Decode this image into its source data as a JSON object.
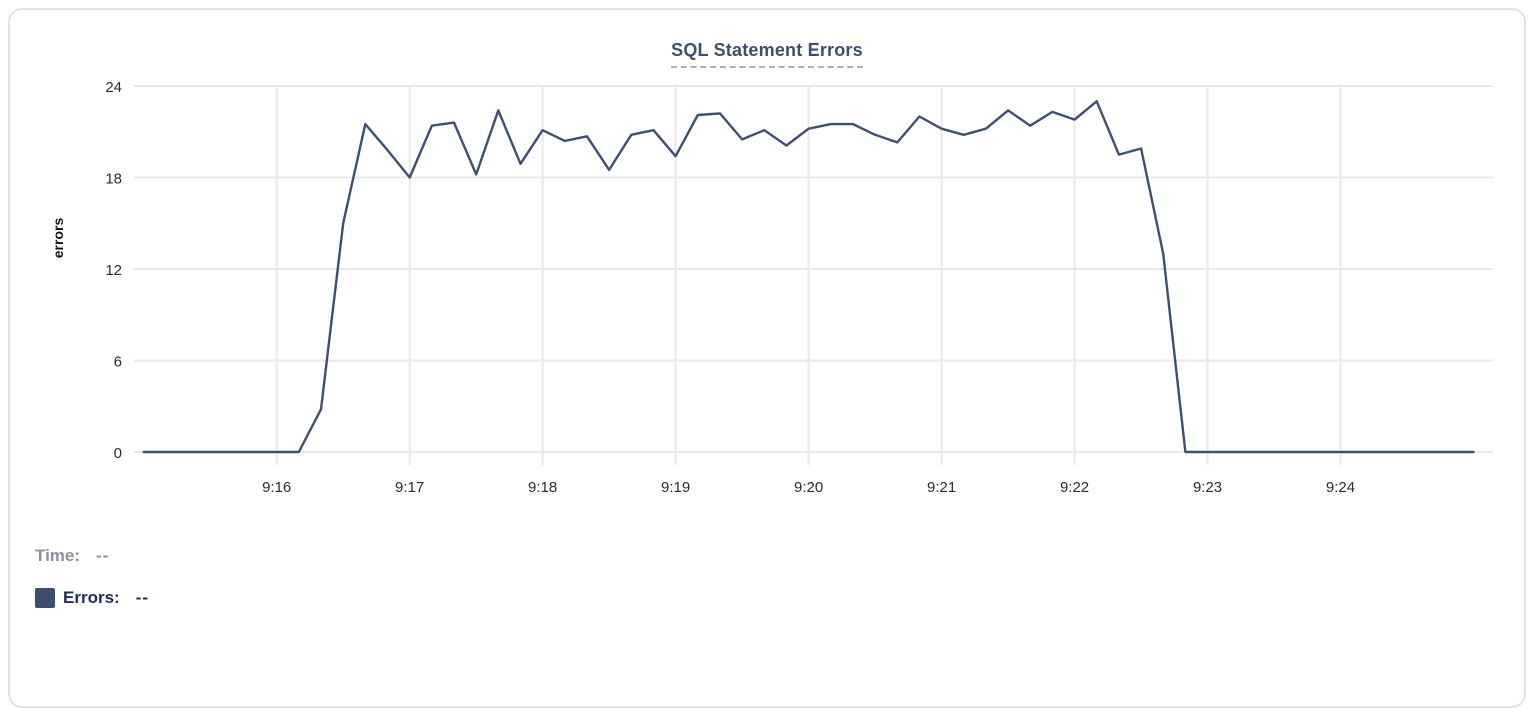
{
  "header": {
    "title": "SQL Statement Errors"
  },
  "axes": {
    "ylabel": "errors"
  },
  "tooltip": {
    "time_label": "Time:",
    "time_value": "--",
    "errors_label": "Errors:",
    "errors_value": "--"
  },
  "colors": {
    "line": "#3f4f6e",
    "title": "#3d4f6f",
    "title_underline": "#a7b1c2",
    "legend_swatch": "#3e4d68",
    "errors_text": "#1f2c55",
    "time_text": "#8b909a",
    "grid": "#e9e9e9",
    "tick_text": "#2b2b2b"
  },
  "chart_data": {
    "type": "line",
    "title": "SQL Statement Errors",
    "xlabel": "",
    "ylabel": "errors",
    "ylim": [
      0,
      24
    ],
    "y_ticks": [
      0,
      6,
      12,
      18,
      24
    ],
    "x_ticks": [
      "9:16",
      "9:17",
      "9:18",
      "9:19",
      "9:20",
      "9:21",
      "9:22",
      "9:23",
      "9:24"
    ],
    "x_range": [
      "9:15:00",
      "9:25:00"
    ],
    "sample_interval_seconds": 10,
    "grid": true,
    "legend_position": "bottom-left",
    "series": [
      {
        "name": "Errors",
        "points": [
          [
            "9:15:00",
            0
          ],
          [
            "9:15:10",
            0
          ],
          [
            "9:15:20",
            0
          ],
          [
            "9:15:30",
            0
          ],
          [
            "9:15:40",
            0
          ],
          [
            "9:15:50",
            0
          ],
          [
            "9:16:00",
            0
          ],
          [
            "9:16:10",
            0
          ],
          [
            "9:16:20",
            2.8
          ],
          [
            "9:16:30",
            15
          ],
          [
            "9:16:40",
            21.5
          ],
          [
            "9:16:50",
            19.8
          ],
          [
            "9:17:00",
            18
          ],
          [
            "9:17:10",
            21.4
          ],
          [
            "9:17:20",
            21.6
          ],
          [
            "9:17:30",
            18.2
          ],
          [
            "9:17:40",
            22.4
          ],
          [
            "9:17:50",
            18.9
          ],
          [
            "9:18:00",
            21.1
          ],
          [
            "9:18:10",
            20.4
          ],
          [
            "9:18:20",
            20.7
          ],
          [
            "9:18:30",
            18.5
          ],
          [
            "9:18:40",
            20.8
          ],
          [
            "9:18:50",
            21.1
          ],
          [
            "9:19:00",
            19.4
          ],
          [
            "9:19:10",
            22.1
          ],
          [
            "9:19:20",
            22.2
          ],
          [
            "9:19:30",
            20.5
          ],
          [
            "9:19:40",
            21.1
          ],
          [
            "9:19:50",
            20.1
          ],
          [
            "9:20:00",
            21.2
          ],
          [
            "9:20:10",
            21.5
          ],
          [
            "9:20:20",
            21.5
          ],
          [
            "9:20:30",
            20.8
          ],
          [
            "9:20:40",
            20.3
          ],
          [
            "9:20:50",
            22
          ],
          [
            "9:21:00",
            21.2
          ],
          [
            "9:21:10",
            20.8
          ],
          [
            "9:21:20",
            21.2
          ],
          [
            "9:21:30",
            22.4
          ],
          [
            "9:21:40",
            21.4
          ],
          [
            "9:21:50",
            22.3
          ],
          [
            "9:22:00",
            21.8
          ],
          [
            "9:22:10",
            23
          ],
          [
            "9:22:20",
            19.5
          ],
          [
            "9:22:30",
            19.9
          ],
          [
            "9:22:40",
            13
          ],
          [
            "9:22:50",
            0
          ],
          [
            "9:23:00",
            0
          ],
          [
            "9:23:10",
            0
          ],
          [
            "9:23:20",
            0
          ],
          [
            "9:23:30",
            0
          ],
          [
            "9:23:40",
            0
          ],
          [
            "9:23:50",
            0
          ],
          [
            "9:24:00",
            0
          ],
          [
            "9:24:10",
            0
          ],
          [
            "9:24:20",
            0
          ],
          [
            "9:24:30",
            0
          ],
          [
            "9:24:40",
            0
          ],
          [
            "9:24:50",
            0
          ],
          [
            "9:25:00",
            0
          ]
        ]
      }
    ]
  }
}
